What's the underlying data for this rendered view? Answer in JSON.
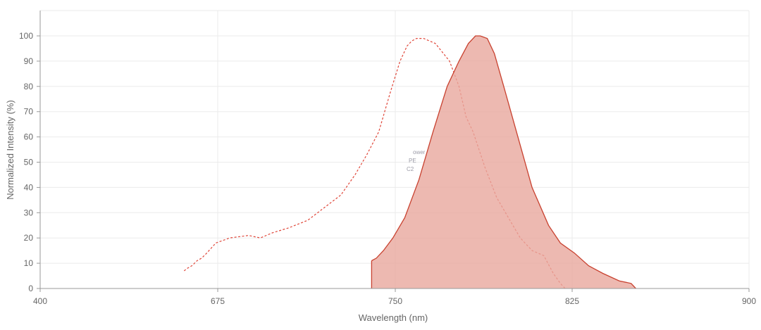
{
  "chart_data": {
    "type": "area",
    "xlabel": "Wavelength (nm)",
    "ylabel": "Normalized Intensity (%)",
    "x_ticks": [
      400,
      675,
      750,
      825,
      900
    ],
    "y_ticks": [
      0,
      10,
      20,
      30,
      40,
      50,
      60,
      70,
      80,
      90,
      100
    ],
    "ylim": [
      0,
      100
    ],
    "grid": true,
    "faint_labels": [
      "ower",
      "PE",
      "C2"
    ],
    "colors": {
      "excitation_line": "#e0473a",
      "emission_line": "#c8412f",
      "emission_fill": "#e9a79e"
    },
    "series": [
      {
        "style": "dashed-line",
        "x": [
          623,
          628,
          635,
          643,
          650,
          658,
          665,
          672,
          680,
          688,
          693,
          698,
          705,
          713,
          720,
          727,
          733,
          738,
          743,
          748,
          752,
          755,
          757,
          759,
          762,
          767,
          773,
          777,
          780,
          783,
          788,
          793,
          798,
          803,
          808,
          813,
          817,
          820,
          822
        ],
        "y": [
          7,
          8,
          9,
          11,
          12,
          14,
          16,
          18,
          20,
          21,
          20,
          22,
          24,
          27,
          32,
          37,
          45,
          53,
          62,
          78,
          90,
          96,
          98,
          99,
          99,
          97,
          90,
          80,
          68,
          62,
          48,
          36,
          28,
          20,
          15,
          13,
          6,
          2,
          0
        ]
      },
      {
        "style": "filled-area",
        "x": [
          740,
          742,
          745,
          749,
          754,
          760,
          766,
          772,
          777,
          781,
          784,
          786,
          789,
          792,
          796,
          802,
          808,
          815,
          820,
          826,
          832,
          838,
          845,
          850,
          852
        ],
        "y": [
          11,
          12,
          15,
          20,
          28,
          43,
          62,
          80,
          90,
          97,
          100,
          100,
          99,
          93,
          80,
          60,
          40,
          25,
          18,
          14,
          9,
          6,
          3,
          2,
          0
        ]
      }
    ]
  }
}
